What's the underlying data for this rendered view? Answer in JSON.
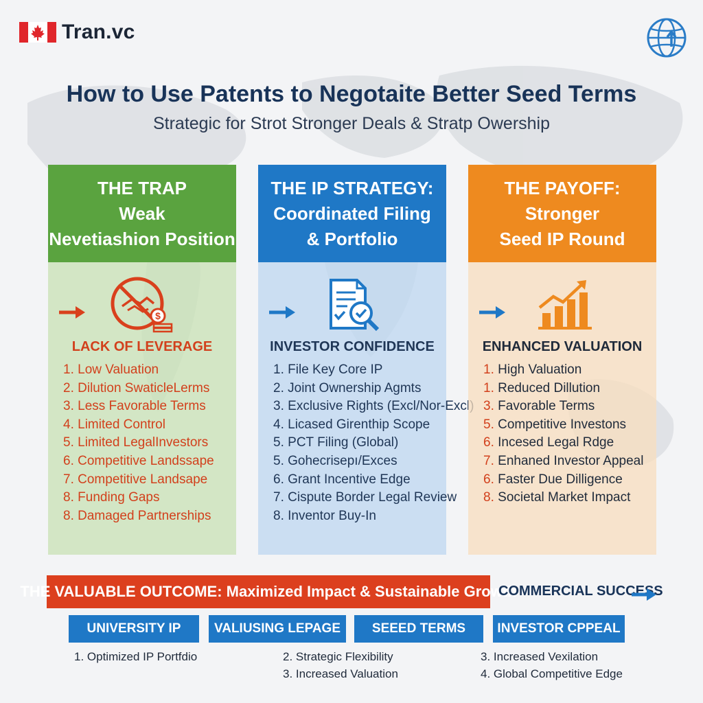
{
  "brand": {
    "name": "Tran.vc"
  },
  "title": "How to Use Patents to Negotaite Better Seed Terms",
  "subtitle": "Strategic for Strot Stronger Deals & Stratp Owership",
  "columns": [
    {
      "header": [
        "THE TRAP",
        "Weak",
        "Nevetiashion Position"
      ],
      "icon": "no-handshake-money-icon",
      "subheading": "LACK OF LEVERAGE",
      "items": [
        {
          "num": "1.",
          "text": "Low Valuation"
        },
        {
          "num": "2.",
          "text": "Dilution SwaticleLerms"
        },
        {
          "num": "3.",
          "text": "Less Favorable Terms"
        },
        {
          "num": "4.",
          "text": "Limited Control"
        },
        {
          "num": "5.",
          "text": "Limited LegalInvestors"
        },
        {
          "num": "6.",
          "text": "Competitive Landssape"
        },
        {
          "num": "7.",
          "text": "Competitive Landsape"
        },
        {
          "num": "8.",
          "text": "Funding Gaps"
        },
        {
          "num": "8.",
          "text": "Damaged Partnerships"
        }
      ],
      "color": "#5aa33f"
    },
    {
      "header": [
        "THE IP STRATEGY:",
        "Coordinated Filing",
        "& Portfolio"
      ],
      "icon": "document-magnifier-check-icon",
      "subheading": "INVESTOR CONFIDENCE",
      "items": [
        {
          "num": "1.",
          "text": "File Key Core IP"
        },
        {
          "num": "2.",
          "text": "Joint Ownership Agmts"
        },
        {
          "num": "3.",
          "text": "Exclusive Rights (Excl/Nor-Excl)"
        },
        {
          "num": "4.",
          "text": "Licased Girenthip Scope"
        },
        {
          "num": "5.",
          "text": "PCT Filing (Global)"
        },
        {
          "num": "5.",
          "text": "Gohecrisepı/Exces"
        },
        {
          "num": "6.",
          "text": "Grant Incentive Edge"
        },
        {
          "num": "7.",
          "text": "Cispute Border Legal Review"
        },
        {
          "num": "8.",
          "text": "Inventor Buy-In"
        }
      ],
      "color": "#1f78c6"
    },
    {
      "header": [
        "THE PAYOFF:",
        "Stronger",
        "Seed IP Round"
      ],
      "icon": "bar-chart-growth-icon",
      "subheading": "ENHANCED VALUATION",
      "items": [
        {
          "num": "1.",
          "text": "High Valuation"
        },
        {
          "num": "1.",
          "text": "Reduced Dillution"
        },
        {
          "num": "3.",
          "text": "Favorable Terms"
        },
        {
          "num": "5.",
          "text": "Competitive Investons"
        },
        {
          "num": "6.",
          "text": "Incesed Legal Rdge"
        },
        {
          "num": "7.",
          "text": "Enhaned Investor Appeal"
        },
        {
          "num": "6.",
          "text": "Faster Due Dilligence"
        },
        {
          "num": "8.",
          "text": "Societal Market Impact"
        }
      ],
      "color": "#ee8a1f"
    }
  ],
  "outcome": "THE VALUABLE OUTCOME: Maximized Impact & Sustainable Growth",
  "commercial": "COMMERCIAL SUCCESS",
  "pills": [
    "UNIVERSITY IP",
    "VALIUSING LEPAGE",
    "SEEED TERMS",
    "INVESTOR CPPEAL"
  ],
  "bottom_lists": [
    [
      "1. Optimized IP Portfdio"
    ],
    [
      "2. Strategic Flexibility",
      "3. Increased Valuation"
    ],
    [
      "3. Increased Vexilation",
      "4. Global Competitive Edge"
    ]
  ]
}
